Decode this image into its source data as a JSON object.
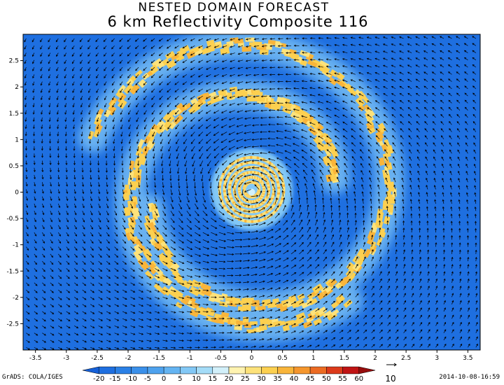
{
  "header": {
    "title": "NESTED DOMAIN FORECAST",
    "subtitle": "6 km Reflectivity Composite 116"
  },
  "footer": {
    "credit": "GrADS: COLA/IGES",
    "timestamp": "2014-10-08-16:59"
  },
  "chart_data": {
    "type": "heatmap",
    "title": "6 km Reflectivity Composite 116",
    "xlabel": "",
    "ylabel": "",
    "xlim": [
      -3.7,
      3.7
    ],
    "ylim": [
      -3.0,
      3.0
    ],
    "x_ticks": [
      -3.5,
      -3,
      -2.5,
      -2,
      -1.5,
      -1,
      -0.5,
      0,
      0.5,
      1,
      1.5,
      2,
      2.5,
      3,
      3.5
    ],
    "x_tick_labels": [
      "-3.5",
      "-3",
      "-2.5",
      "-2",
      "-1.5",
      "-1",
      "-0.5",
      "0",
      "0.5",
      "1",
      "1.5",
      "2",
      "2.5",
      "3",
      "3.5"
    ],
    "y_ticks": [
      2.5,
      2,
      1.5,
      1,
      0.5,
      0,
      -0.5,
      -1,
      -1.5,
      -2,
      -2.5
    ],
    "y_tick_labels": [
      "2.5",
      "2",
      "1.5",
      "1",
      "0.5",
      "0",
      "-0.5",
      "-1",
      "-1.5",
      "-2",
      "-2.5"
    ],
    "grid": false,
    "colorbar": {
      "levels": [
        "-20",
        "-15",
        "-10",
        "-5",
        "0",
        "5",
        "10",
        "15",
        "20",
        "25",
        "30",
        "35",
        "40",
        "45",
        "50",
        "55",
        "60"
      ],
      "colors": [
        "#1560d8",
        "#1e6fe0",
        "#2a80e6",
        "#3a90ea",
        "#4ea2ee",
        "#64b4f2",
        "#82c8f6",
        "#a4dcf8",
        "#d2f0fa",
        "#fff3b0",
        "#fde27a",
        "#fcd050",
        "#f9b53a",
        "#f5962d",
        "#ec6b22",
        "#dc3a1a",
        "#c01414",
        "#960c0c"
      ]
    },
    "vector_reference": "10",
    "series": [
      {
        "name": "",
        "feature": "storm center",
        "x": 0.0,
        "y": 0.0,
        "value": 35
      },
      {
        "name": "",
        "feature": "inner core",
        "center": [
          0.0,
          0.05
        ],
        "radius": 0.7,
        "value": 30
      },
      {
        "name": "",
        "feature": "spiral rainband",
        "r_start": 1.6,
        "r_end": 2.6,
        "theta_start_deg": 190,
        "theta_span_deg": 330,
        "value": 30
      },
      {
        "name": "",
        "feature": "spiral rainband",
        "r_start": 1.3,
        "r_end": 2.3,
        "theta_start_deg": 10,
        "theta_span_deg": 300,
        "value": 25
      }
    ]
  }
}
